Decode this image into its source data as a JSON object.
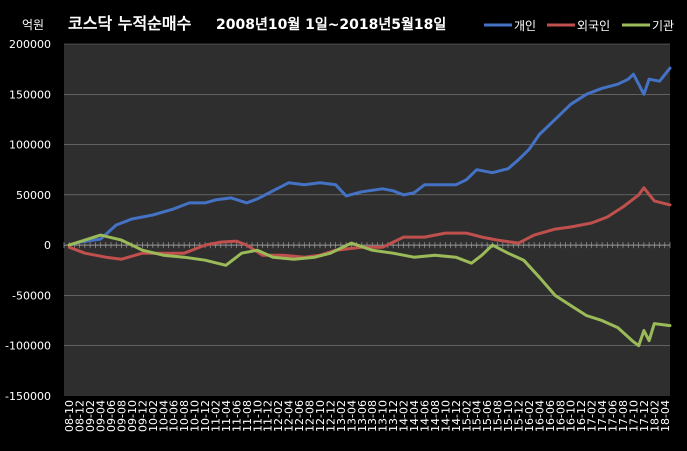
{
  "chart_data": {
    "type": "line",
    "title_prefix": "코스닥 누적순매수",
    "title_suffix": "2008년10월 1일~2018년5월18일",
    "y_unit": "억원",
    "ylim": [
      -150000,
      200000
    ],
    "y_ticks": [
      200000,
      150000,
      100000,
      50000,
      0,
      -50000,
      -100000,
      -150000
    ],
    "grid": true,
    "legend_position": "top-right",
    "x_ticks": [
      "08-10",
      "08-12",
      "09-02",
      "09-04",
      "09-06",
      "09-08",
      "09-10",
      "09-12",
      "10-02",
      "10-04",
      "10-06",
      "10-08",
      "10-10",
      "10-12",
      "11-02",
      "11-04",
      "11-06",
      "11-08",
      "11-10",
      "11-12",
      "12-02",
      "12-04",
      "12-06",
      "12-08",
      "12-10",
      "12-12",
      "13-02",
      "13-04",
      "13-06",
      "13-08",
      "13-10",
      "13-12",
      "14-02",
      "14-04",
      "14-06",
      "14-08",
      "14-10",
      "14-12",
      "15-02",
      "15-04",
      "15-06",
      "15-08",
      "15-10",
      "15-12",
      "16-02",
      "16-04",
      "16-06",
      "16-08",
      "16-10",
      "16-12",
      "17-02",
      "17-04",
      "17-06",
      "17-08",
      "17-10",
      "17-12",
      "18-02",
      "18-04"
    ],
    "x_start": "08-10",
    "series": [
      {
        "name": "개인",
        "color": "#4472C4",
        "points": [
          [
            "08-10",
            0
          ],
          [
            "08-12",
            3000
          ],
          [
            "09-04",
            6000
          ],
          [
            "09-07",
            20000
          ],
          [
            "09-10",
            26000
          ],
          [
            "10-02",
            30000
          ],
          [
            "10-06",
            36000
          ],
          [
            "10-09",
            42000
          ],
          [
            "10-12",
            42000
          ],
          [
            "11-02",
            45000
          ],
          [
            "11-05",
            47000
          ],
          [
            "11-08",
            42000
          ],
          [
            "11-10",
            46000
          ],
          [
            "12-01",
            54000
          ],
          [
            "12-04",
            62000
          ],
          [
            "12-07",
            60000
          ],
          [
            "12-10",
            62000
          ],
          [
            "13-01",
            60000
          ],
          [
            "13-03",
            49000
          ],
          [
            "13-06",
            53000
          ],
          [
            "13-10",
            56000
          ],
          [
            "13-12",
            54000
          ],
          [
            "14-02",
            50000
          ],
          [
            "14-04",
            52000
          ],
          [
            "14-06",
            60000
          ],
          [
            "14-09",
            60000
          ],
          [
            "14-12",
            60000
          ],
          [
            "15-02",
            65000
          ],
          [
            "15-04",
            75000
          ],
          [
            "15-07",
            72000
          ],
          [
            "15-10",
            76000
          ],
          [
            "15-12",
            85000
          ],
          [
            "16-02",
            95000
          ],
          [
            "16-04",
            110000
          ],
          [
            "16-07",
            125000
          ],
          [
            "16-10",
            140000
          ],
          [
            "17-01",
            150000
          ],
          [
            "17-04",
            156000
          ],
          [
            "17-07",
            160000
          ],
          [
            "17-09",
            165000
          ],
          [
            "17-10",
            170000
          ],
          [
            "17-11",
            160000
          ],
          [
            "17-12",
            150000
          ],
          [
            "18-01",
            165000
          ],
          [
            "18-03",
            163000
          ],
          [
            "18-05",
            176000
          ]
        ]
      },
      {
        "name": "외국인",
        "color": "#C0504D",
        "points": [
          [
            "08-10",
            -2000
          ],
          [
            "09-01",
            -8000
          ],
          [
            "09-05",
            -12000
          ],
          [
            "09-08",
            -14000
          ],
          [
            "09-12",
            -8000
          ],
          [
            "10-04",
            -8000
          ],
          [
            "10-08",
            -8000
          ],
          [
            "10-12",
            0
          ],
          [
            "11-03",
            3000
          ],
          [
            "11-06",
            4000
          ],
          [
            "11-08",
            0
          ],
          [
            "11-11",
            -10000
          ],
          [
            "12-03",
            -10000
          ],
          [
            "12-07",
            -12000
          ],
          [
            "12-10",
            -10000
          ],
          [
            "13-01",
            -5000
          ],
          [
            "13-06",
            -2000
          ],
          [
            "13-10",
            -2000
          ],
          [
            "14-02",
            8000
          ],
          [
            "14-06",
            8000
          ],
          [
            "14-10",
            12000
          ],
          [
            "15-02",
            12000
          ],
          [
            "15-05",
            8000
          ],
          [
            "15-08",
            5000
          ],
          [
            "15-12",
            2000
          ],
          [
            "16-03",
            10000
          ],
          [
            "16-07",
            16000
          ],
          [
            "16-10",
            18000
          ],
          [
            "17-02",
            22000
          ],
          [
            "17-05",
            28000
          ],
          [
            "17-08",
            38000
          ],
          [
            "17-11",
            50000
          ],
          [
            "17-12",
            57000
          ],
          [
            "18-02",
            44000
          ],
          [
            "18-05",
            40000
          ]
        ]
      },
      {
        "name": "기관",
        "color": "#9BBB59",
        "points": [
          [
            "08-10",
            0
          ],
          [
            "09-01",
            5000
          ],
          [
            "09-04",
            10000
          ],
          [
            "09-08",
            5000
          ],
          [
            "09-12",
            -5000
          ],
          [
            "10-04",
            -10000
          ],
          [
            "10-08",
            -12000
          ],
          [
            "10-12",
            -15000
          ],
          [
            "11-04",
            -20000
          ],
          [
            "11-07",
            -8000
          ],
          [
            "11-10",
            -5000
          ],
          [
            "12-01",
            -12000
          ],
          [
            "12-05",
            -14000
          ],
          [
            "12-09",
            -12000
          ],
          [
            "12-12",
            -8000
          ],
          [
            "13-04",
            2000
          ],
          [
            "13-08",
            -5000
          ],
          [
            "13-12",
            -8000
          ],
          [
            "14-04",
            -12000
          ],
          [
            "14-08",
            -10000
          ],
          [
            "14-12",
            -12000
          ],
          [
            "15-03",
            -18000
          ],
          [
            "15-05",
            -10000
          ],
          [
            "15-07",
            0
          ],
          [
            "15-10",
            -8000
          ],
          [
            "16-01",
            -15000
          ],
          [
            "16-04",
            -32000
          ],
          [
            "16-07",
            -50000
          ],
          [
            "16-10",
            -60000
          ],
          [
            "17-01",
            -70000
          ],
          [
            "17-04",
            -75000
          ],
          [
            "17-07",
            -82000
          ],
          [
            "17-10",
            -96000
          ],
          [
            "17-11",
            -100000
          ],
          [
            "17-12",
            -85000
          ],
          [
            "18-01",
            -95000
          ],
          [
            "18-02",
            -78000
          ],
          [
            "18-05",
            -80000
          ]
        ]
      }
    ]
  }
}
